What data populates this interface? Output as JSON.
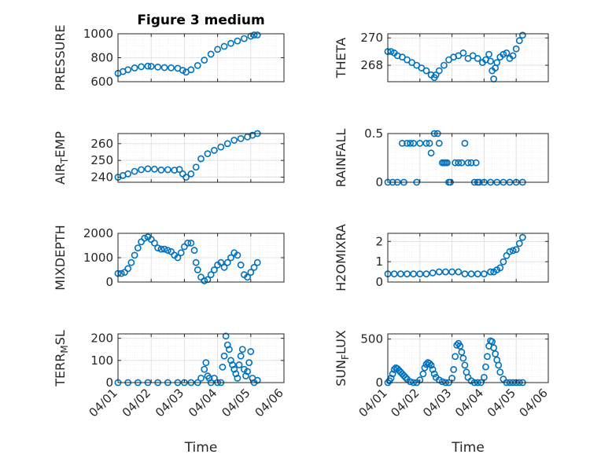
{
  "figure": {
    "title": "Figure 3 medium",
    "marker_color": "#0072BD"
  },
  "chart_data": [
    {
      "type": "scatter",
      "ylabel": "PRESSURE",
      "title": "Figure 3 medium",
      "ylim": [
        600,
        1000
      ],
      "yticks": [
        600,
        800,
        1000
      ],
      "ytick_labels": [
        "600",
        "800",
        "1000"
      ],
      "xlim": [
        0,
        5
      ],
      "xticks": [
        0,
        1,
        2,
        3,
        4,
        5
      ],
      "show_xtick_labels": false,
      "grid": true,
      "series": [
        {
          "x": [
            0,
            0.15,
            0.3,
            0.5,
            0.7,
            0.9,
            1.0,
            1.2,
            1.4,
            1.6,
            1.8,
            1.95,
            2.05,
            2.2,
            2.4,
            2.6,
            2.8,
            3.0,
            3.2,
            3.4,
            3.6,
            3.8,
            4.0,
            4.1,
            4.2
          ],
          "y": [
            670,
            685,
            700,
            715,
            725,
            730,
            728,
            722,
            718,
            716,
            712,
            695,
            680,
            700,
            735,
            780,
            830,
            870,
            895,
            920,
            940,
            960,
            980,
            990,
            990
          ]
        }
      ]
    },
    {
      "type": "scatter",
      "ylabel": "THETA",
      "ylim": [
        266.8,
        270.3
      ],
      "yticks": [
        268,
        270
      ],
      "ytick_labels": [
        "268",
        "270"
      ],
      "xlim": [
        0,
        5
      ],
      "xticks": [
        0,
        1,
        2,
        3,
        4,
        5
      ],
      "show_xtick_labels": false,
      "grid": true,
      "series": [
        {
          "x": [
            0,
            0.1,
            0.2,
            0.3,
            0.45,
            0.6,
            0.75,
            0.9,
            1.05,
            1.2,
            1.35,
            1.45,
            1.5,
            1.6,
            1.75,
            1.9,
            2.05,
            2.2,
            2.35,
            2.5,
            2.65,
            2.8,
            2.95,
            3.05,
            3.15,
            3.2,
            3.25,
            3.3,
            3.35,
            3.4,
            3.5,
            3.6,
            3.7,
            3.8,
            3.9,
            4.0,
            4.1,
            4.2
          ],
          "y": [
            269.0,
            269.0,
            268.9,
            268.7,
            268.6,
            268.4,
            268.2,
            268.0,
            267.8,
            267.6,
            267.3,
            267.1,
            267.3,
            267.6,
            268.0,
            268.4,
            268.6,
            268.7,
            268.9,
            268.5,
            268.7,
            268.5,
            268.2,
            268.4,
            268.8,
            268.3,
            267.6,
            267.0,
            267.8,
            268.2,
            268.6,
            268.8,
            268.9,
            268.5,
            268.7,
            269.2,
            269.8,
            270.2
          ]
        }
      ]
    },
    {
      "type": "scatter",
      "ylabel": "AIR_TEMP",
      "ylim": [
        237,
        266
      ],
      "yticks": [
        240,
        250,
        260
      ],
      "ytick_labels": [
        "240",
        "250",
        "260"
      ],
      "xlim": [
        0,
        5
      ],
      "xticks": [
        0,
        1,
        2,
        3,
        4,
        5
      ],
      "show_xtick_labels": false,
      "grid": true,
      "series": [
        {
          "x": [
            0,
            0.15,
            0.3,
            0.5,
            0.7,
            0.9,
            1.1,
            1.3,
            1.5,
            1.7,
            1.85,
            1.95,
            2.05,
            2.2,
            2.35,
            2.5,
            2.7,
            2.9,
            3.1,
            3.3,
            3.5,
            3.7,
            3.9,
            4.05,
            4.2
          ],
          "y": [
            240,
            241,
            242,
            243.5,
            244.5,
            245,
            244.8,
            244.3,
            244.5,
            244.2,
            244.6,
            242,
            240,
            242,
            246,
            251,
            254,
            256,
            258,
            260,
            262,
            263,
            264,
            265,
            266
          ]
        }
      ]
    },
    {
      "type": "scatter",
      "ylabel": "RAINFALL",
      "ylim": [
        0,
        0.5
      ],
      "yticks": [
        0,
        0.5
      ],
      "ytick_labels": [
        "0",
        "0.5"
      ],
      "xlim": [
        0,
        5
      ],
      "xticks": [
        0,
        1,
        2,
        3,
        4,
        5
      ],
      "show_xtick_labels": false,
      "grid": true,
      "series": [
        {
          "x": [
            0,
            0.15,
            0.3,
            0.45,
            0.5,
            0.6,
            0.7,
            0.8,
            0.9,
            1.0,
            1.2,
            1.3,
            1.35,
            1.45,
            1.55,
            1.6,
            1.7,
            1.75,
            1.8,
            1.85,
            1.9,
            1.95,
            2.1,
            2.2,
            2.3,
            2.4,
            2.5,
            2.6,
            2.7,
            2.75,
            2.8,
            2.85,
            3.0,
            3.2,
            3.4,
            3.6,
            3.8,
            4.0,
            4.2
          ],
          "y": [
            0,
            0,
            0,
            0.4,
            0,
            0.4,
            0.4,
            0.4,
            0,
            0.4,
            0.4,
            0.4,
            0.3,
            0.5,
            0.5,
            0.4,
            0.2,
            0.2,
            0.2,
            0.2,
            0,
            0,
            0.2,
            0.2,
            0.2,
            0.4,
            0.2,
            0.2,
            0,
            0.2,
            0,
            0,
            0,
            0,
            0,
            0,
            0,
            0,
            0
          ]
        }
      ]
    },
    {
      "type": "scatter",
      "ylabel": "MIXDEPTH",
      "ylim": [
        0,
        2000
      ],
      "yticks": [
        0,
        1000,
        2000
      ],
      "ytick_labels": [
        "0",
        "1000",
        "2000"
      ],
      "xlim": [
        0,
        5
      ],
      "xticks": [
        0,
        1,
        2,
        3,
        4,
        5
      ],
      "show_xtick_labels": false,
      "grid": true,
      "series": [
        {
          "x": [
            0,
            0.1,
            0.2,
            0.3,
            0.4,
            0.5,
            0.6,
            0.7,
            0.8,
            0.9,
            1.0,
            1.1,
            1.2,
            1.3,
            1.4,
            1.5,
            1.6,
            1.7,
            1.8,
            1.9,
            2.0,
            2.1,
            2.2,
            2.3,
            2.35,
            2.4,
            2.5,
            2.6,
            2.7,
            2.8,
            2.9,
            3.0,
            3.1,
            3.2,
            3.3,
            3.4,
            3.5,
            3.6,
            3.7,
            3.8,
            3.9,
            4.0,
            4.1,
            4.2
          ],
          "y": [
            350,
            350,
            400,
            550,
            800,
            1100,
            1400,
            1650,
            1800,
            1850,
            1750,
            1600,
            1400,
            1350,
            1350,
            1300,
            1250,
            1100,
            1000,
            1200,
            1450,
            1600,
            1600,
            1300,
            800,
            500,
            200,
            50,
            100,
            300,
            500,
            700,
            800,
            600,
            800,
            1000,
            1200,
            1100,
            700,
            300,
            200,
            400,
            600,
            800
          ]
        }
      ]
    },
    {
      "type": "scatter",
      "ylabel": "H2OMIXRA",
      "ylim": [
        0,
        2.4
      ],
      "yticks": [
        0,
        1,
        2
      ],
      "ytick_labels": [
        "0",
        "1",
        "2"
      ],
      "xlim": [
        0,
        5
      ],
      "xticks": [
        0,
        1,
        2,
        3,
        4,
        5
      ],
      "show_xtick_labels": false,
      "grid": true,
      "series": [
        {
          "x": [
            0,
            0.2,
            0.4,
            0.6,
            0.8,
            1.0,
            1.2,
            1.4,
            1.6,
            1.8,
            2.0,
            2.2,
            2.4,
            2.6,
            2.8,
            3.0,
            3.2,
            3.3,
            3.4,
            3.5,
            3.6,
            3.7,
            3.8,
            3.9,
            4.0,
            4.1,
            4.2
          ],
          "y": [
            0.4,
            0.4,
            0.4,
            0.4,
            0.4,
            0.4,
            0.4,
            0.45,
            0.5,
            0.5,
            0.5,
            0.5,
            0.4,
            0.4,
            0.4,
            0.4,
            0.5,
            0.5,
            0.6,
            0.7,
            1.0,
            1.3,
            1.5,
            1.55,
            1.6,
            1.9,
            2.2
          ]
        }
      ]
    },
    {
      "type": "scatter",
      "ylabel": "TERR_MSL",
      "ylim": [
        0,
        220
      ],
      "yticks": [
        0,
        100,
        200
      ],
      "ytick_labels": [
        "0",
        "100",
        "200"
      ],
      "xlim": [
        0,
        5
      ],
      "xticks": [
        0,
        1,
        2,
        3,
        4,
        5
      ],
      "xtick_labels": [
        "04/01",
        "04/02",
        "04/03",
        "04/04",
        "04/05",
        "04/06"
      ],
      "show_xtick_labels": true,
      "xlabel": "Time",
      "grid": true,
      "series": [
        {
          "x": [
            0,
            0.3,
            0.6,
            0.9,
            1.2,
            1.5,
            1.8,
            2.0,
            2.2,
            2.4,
            2.5,
            2.6,
            2.65,
            2.7,
            2.75,
            2.8,
            2.9,
            3.0,
            3.1,
            3.15,
            3.2,
            3.25,
            3.3,
            3.35,
            3.4,
            3.45,
            3.5,
            3.55,
            3.6,
            3.65,
            3.7,
            3.75,
            3.8,
            3.85,
            3.9,
            3.95,
            4.0,
            4.05,
            4.1,
            4.2
          ],
          "y": [
            0,
            0,
            0,
            0,
            0,
            0,
            0,
            0,
            0,
            0,
            20,
            60,
            90,
            30,
            20,
            0,
            20,
            0,
            0,
            70,
            120,
            210,
            170,
            150,
            100,
            80,
            60,
            40,
            20,
            80,
            120,
            150,
            60,
            30,
            50,
            90,
            140,
            20,
            0,
            10
          ]
        }
      ]
    },
    {
      "type": "scatter",
      "ylabel": "SUN_FLUX",
      "ylim": [
        0,
        560
      ],
      "yticks": [
        0,
        500
      ],
      "ytick_labels": [
        "0",
        "500"
      ],
      "xlim": [
        0,
        5
      ],
      "xticks": [
        0,
        1,
        2,
        3,
        4,
        5
      ],
      "xtick_labels": [
        "04/01",
        "04/02",
        "04/03",
        "04/04",
        "04/05",
        "04/06"
      ],
      "show_xtick_labels": true,
      "xlabel": "Time",
      "grid": true,
      "series": [
        {
          "x": [
            0,
            0.05,
            0.1,
            0.15,
            0.2,
            0.25,
            0.3,
            0.35,
            0.4,
            0.45,
            0.5,
            0.55,
            0.6,
            0.7,
            0.8,
            0.9,
            1.0,
            1.1,
            1.15,
            1.2,
            1.25,
            1.3,
            1.35,
            1.4,
            1.45,
            1.5,
            1.6,
            1.7,
            1.8,
            1.9,
            2.0,
            2.05,
            2.1,
            2.15,
            2.2,
            2.25,
            2.3,
            2.35,
            2.4,
            2.45,
            2.5,
            2.6,
            2.7,
            2.8,
            2.9,
            3.0,
            3.05,
            3.1,
            3.15,
            3.2,
            3.25,
            3.3,
            3.35,
            3.4,
            3.45,
            3.5,
            3.6,
            3.7,
            3.8,
            3.9,
            4.0,
            4.1,
            4.2
          ],
          "y": [
            0,
            20,
            50,
            100,
            150,
            170,
            160,
            140,
            120,
            100,
            80,
            60,
            40,
            10,
            0,
            0,
            30,
            100,
            170,
            210,
            230,
            220,
            200,
            150,
            100,
            60,
            30,
            10,
            0,
            0,
            50,
            150,
            300,
            430,
            450,
            420,
            350,
            280,
            200,
            120,
            60,
            20,
            0,
            0,
            0,
            60,
            180,
            300,
            420,
            480,
            470,
            400,
            330,
            260,
            200,
            120,
            40,
            0,
            0,
            0,
            0,
            0,
            0
          ]
        }
      ]
    }
  ]
}
